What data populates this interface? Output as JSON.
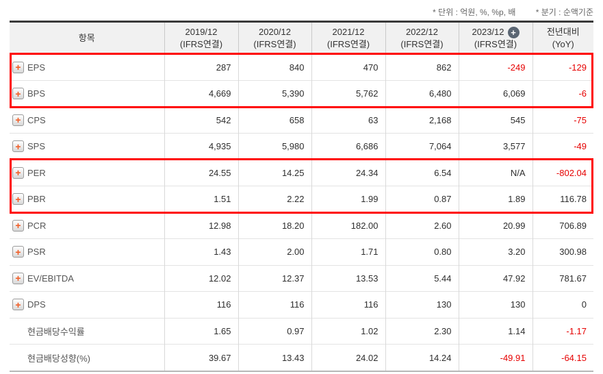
{
  "notes": {
    "unit": "* 단위 : 억원, %, %p, 배",
    "basis": "* 분기 : 순액기준"
  },
  "table": {
    "header": {
      "item_label": "항목",
      "columns": [
        {
          "period": "2019/12",
          "basis": "(IFRS연결)"
        },
        {
          "period": "2020/12",
          "basis": "(IFRS연결)"
        },
        {
          "period": "2021/12",
          "basis": "(IFRS연결)"
        },
        {
          "period": "2022/12",
          "basis": "(IFRS연결)"
        },
        {
          "period": "2023/12",
          "basis": "(IFRS연결)",
          "add_icon": "plus-circle-icon"
        },
        {
          "period": "전년대비",
          "basis": "(YoY)"
        }
      ]
    },
    "rows": [
      {
        "label": "EPS",
        "expandable": true,
        "values": [
          "287",
          "840",
          "470",
          "862",
          "-249",
          "-129"
        ]
      },
      {
        "label": "BPS",
        "expandable": true,
        "values": [
          "4,669",
          "5,390",
          "5,762",
          "6,480",
          "6,069",
          "-6"
        ]
      },
      {
        "label": "CPS",
        "expandable": true,
        "values": [
          "542",
          "658",
          "63",
          "2,168",
          "545",
          "-75"
        ]
      },
      {
        "label": "SPS",
        "expandable": true,
        "values": [
          "4,935",
          "5,980",
          "6,686",
          "7,064",
          "3,577",
          "-49"
        ]
      },
      {
        "label": "PER",
        "expandable": true,
        "values": [
          "24.55",
          "14.25",
          "24.34",
          "6.54",
          "N/A",
          "-802.04"
        ]
      },
      {
        "label": "PBR",
        "expandable": true,
        "values": [
          "1.51",
          "2.22",
          "1.99",
          "0.87",
          "1.89",
          "116.78"
        ]
      },
      {
        "label": "PCR",
        "expandable": true,
        "values": [
          "12.98",
          "18.20",
          "182.00",
          "2.60",
          "20.99",
          "706.89"
        ]
      },
      {
        "label": "PSR",
        "expandable": true,
        "values": [
          "1.43",
          "2.00",
          "1.71",
          "0.80",
          "3.20",
          "300.98"
        ]
      },
      {
        "label": "EV/EBITDA",
        "expandable": true,
        "values": [
          "12.02",
          "12.37",
          "13.53",
          "5.44",
          "47.92",
          "781.67"
        ]
      },
      {
        "label": "DPS",
        "expandable": true,
        "values": [
          "116",
          "116",
          "116",
          "130",
          "130",
          "0"
        ]
      },
      {
        "label": "현금배당수익률",
        "expandable": false,
        "values": [
          "1.65",
          "0.97",
          "1.02",
          "2.30",
          "1.14",
          "-1.17"
        ]
      },
      {
        "label": "현금배당성향(%)",
        "expandable": false,
        "values": [
          "39.67",
          "13.43",
          "24.02",
          "14.24",
          "-49.91",
          "-64.15"
        ]
      }
    ],
    "highlight_groups": [
      {
        "start": 0,
        "end": 1,
        "rows": [
          "EPS",
          "BPS"
        ]
      },
      {
        "start": 4,
        "end": 5,
        "rows": [
          "PER",
          "PBR"
        ]
      }
    ],
    "colors": {
      "negative_value": "#e60000",
      "highlight_border": "#ff0000",
      "expand_plus": "#f15a22"
    }
  }
}
